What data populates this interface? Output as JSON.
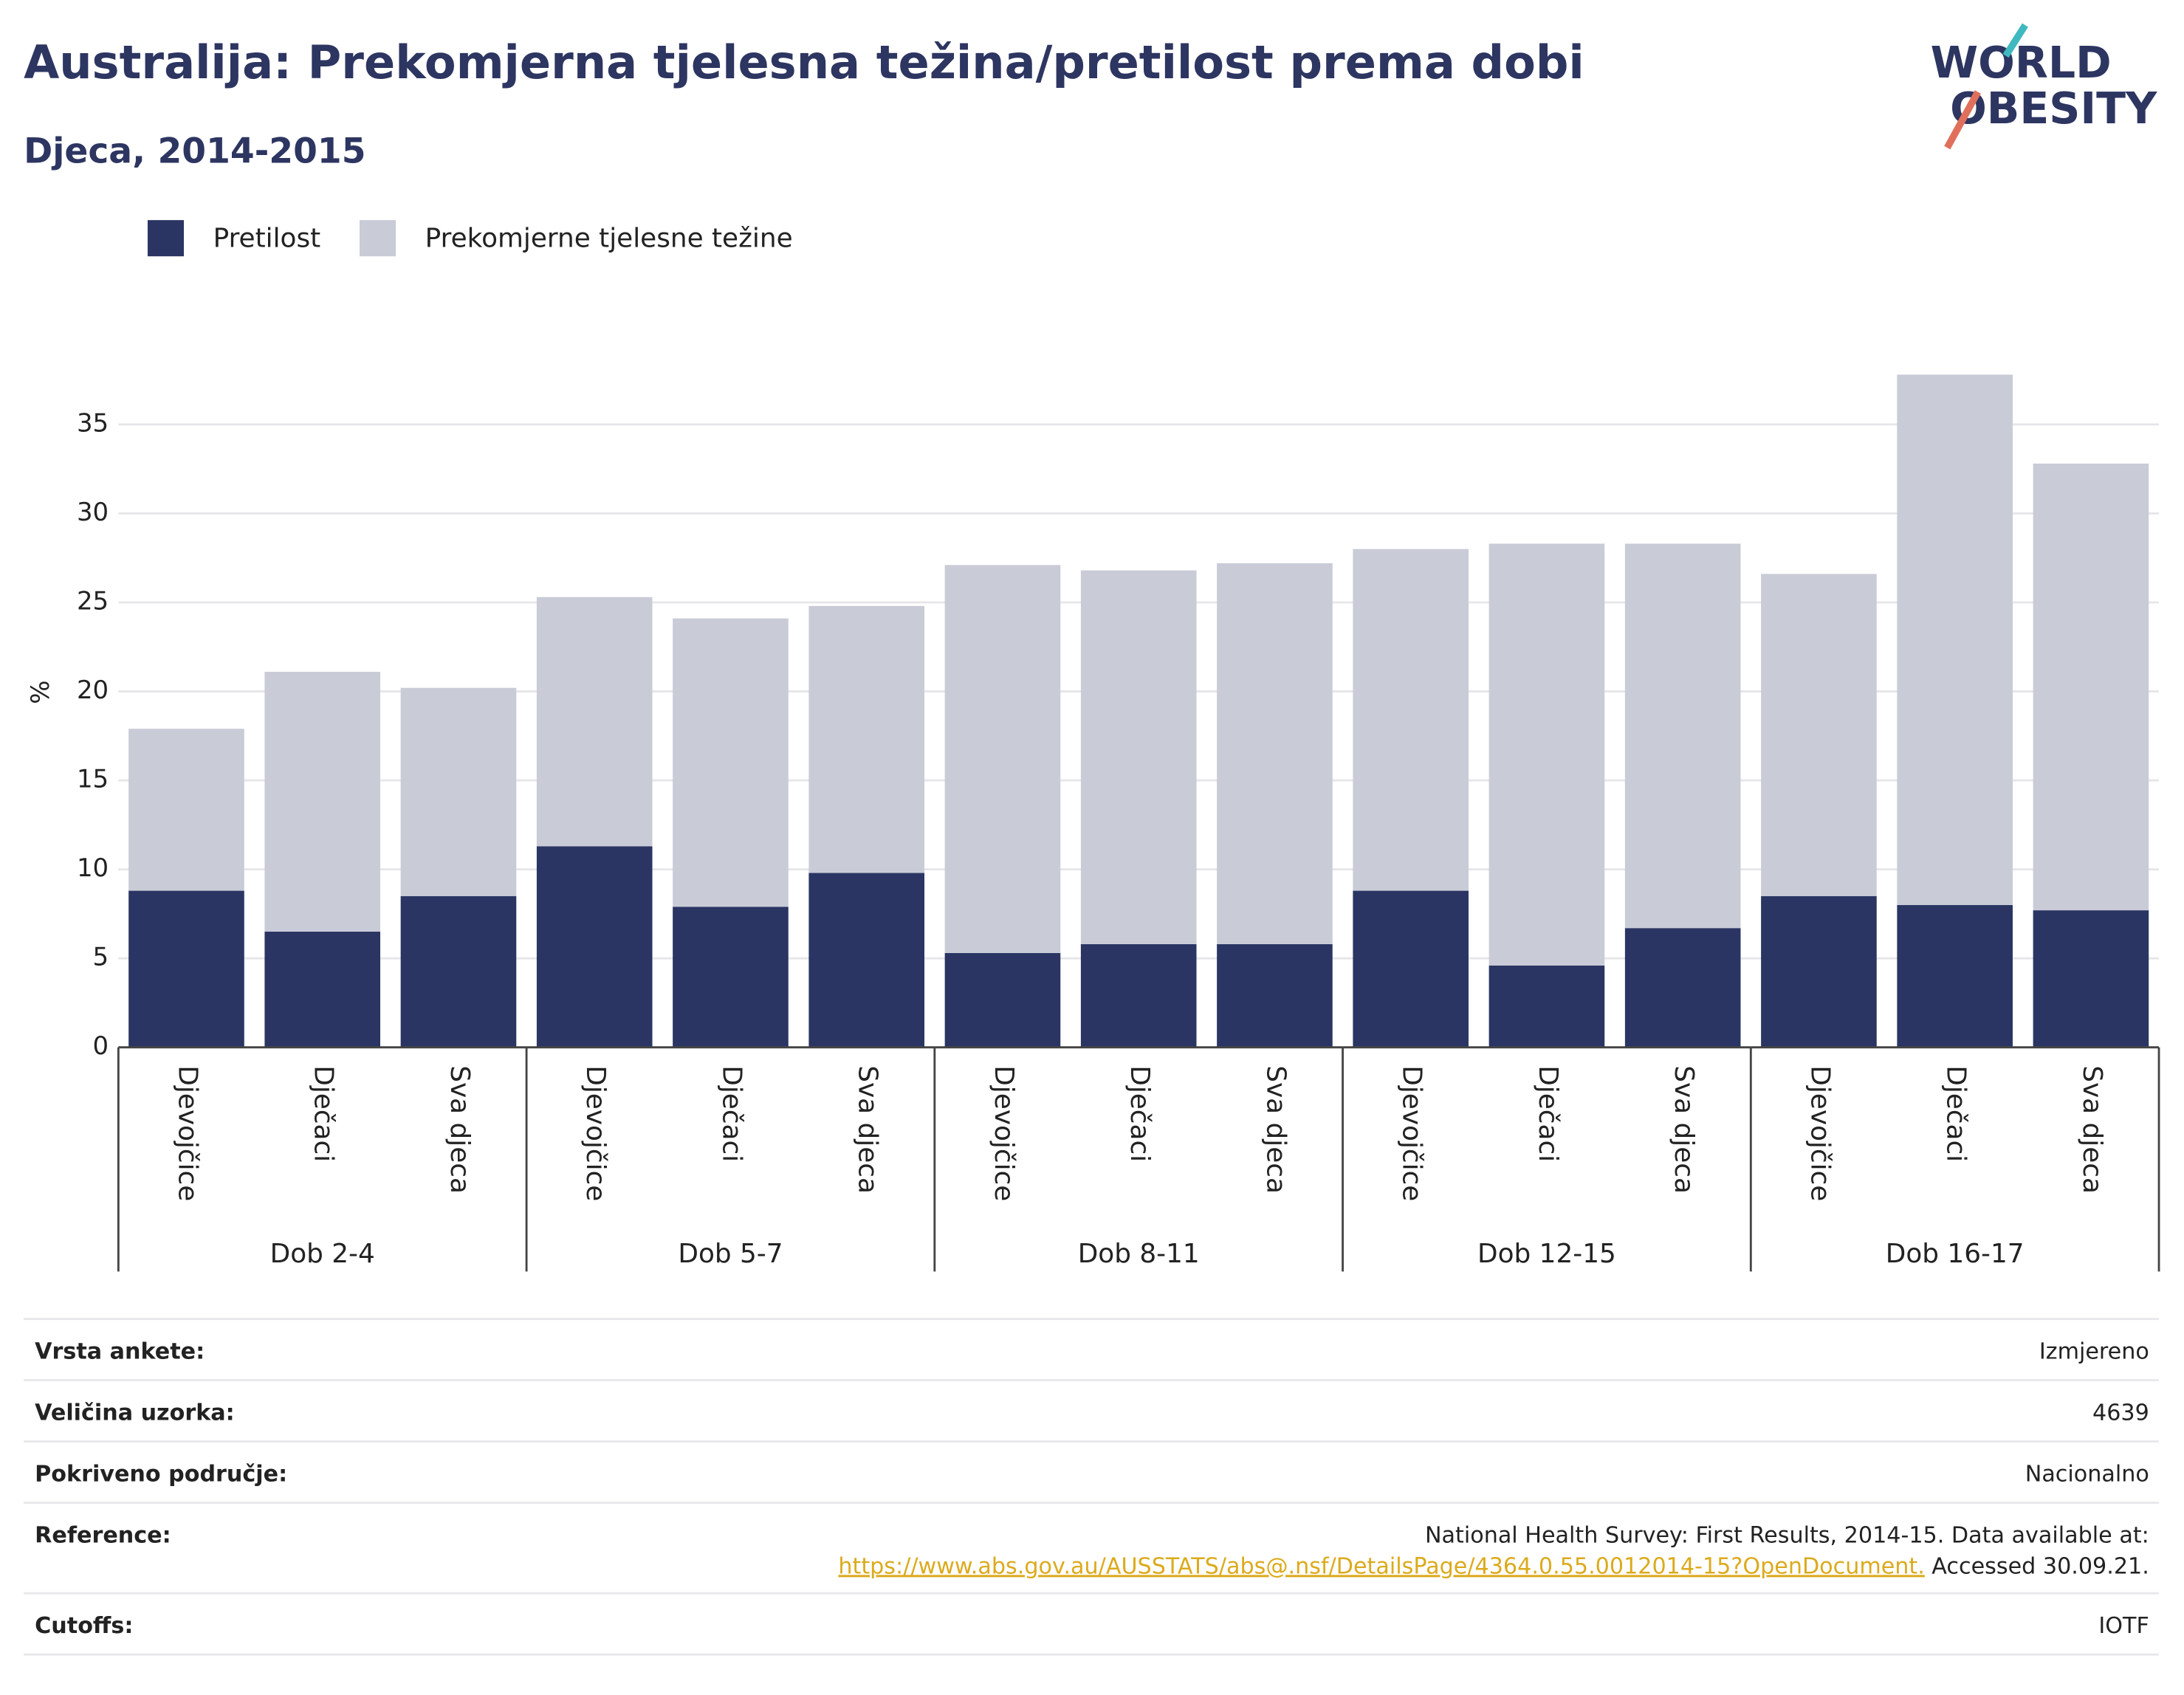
{
  "chart_data": {
    "type": "bar",
    "stacked": true,
    "title": "Australija: Prekomjerna tjelesna težina/pretilost prema dobi",
    "subtitle": "Djeca, 2014-2015",
    "y_label": "%",
    "groups": [
      "Dob 2-4",
      "Dob 5-7",
      "Dob 8-11",
      "Dob 12-15",
      "Dob 16-17"
    ],
    "categories": [
      "Djevojčice",
      "Dječaci",
      "Sva djeca",
      "Djevojčice",
      "Dječaci",
      "Sva djeca",
      "Djevojčice",
      "Dječaci",
      "Sva djeca",
      "Djevojčice",
      "Dječaci",
      "Sva djeca",
      "Djevojčice",
      "Dječaci",
      "Sva djeca"
    ],
    "series": [
      {
        "name": "Pretilost",
        "color": "#2a3563",
        "values": [
          8.8,
          6.5,
          8.5,
          11.3,
          7.9,
          9.8,
          5.3,
          5.8,
          5.8,
          8.8,
          4.6,
          6.7,
          8.5,
          8.0,
          7.7
        ]
      },
      {
        "name": "Prekomjerne tjelesne težine",
        "color": "#c9cbd7",
        "values": [
          9.1,
          14.6,
          11.7,
          14.0,
          16.2,
          15.0,
          21.8,
          21.0,
          21.4,
          19.2,
          23.7,
          21.6,
          18.1,
          29.8,
          25.1
        ]
      }
    ],
    "ylim": [
      0,
      38.5
    ],
    "yticks": [
      0,
      5,
      10,
      15,
      20,
      25,
      30,
      35
    ],
    "grid": true
  },
  "logo": [
    "WORLD",
    "OBESITY"
  ],
  "info": [
    {
      "label": "Vrsta ankete:",
      "value": [
        "Izmjereno"
      ]
    },
    {
      "label": "Veličina uzorka:",
      "value": [
        "4639"
      ]
    },
    {
      "label": "Pokriveno područje:",
      "value": [
        "Nacionalno"
      ]
    },
    {
      "label": "Reference:",
      "value": [
        "National Health Survey: First Results, 2014-15. Data available at:",
        "https://www.abs.gov.au/AUSSTATS/abs@.nsf/DetailsPage/4364.0.55.0012014-15?OpenDocument.",
        "Accessed 30.09.21."
      ]
    },
    {
      "label": "Cutoffs:",
      "value": [
        "IOTF"
      ]
    }
  ]
}
